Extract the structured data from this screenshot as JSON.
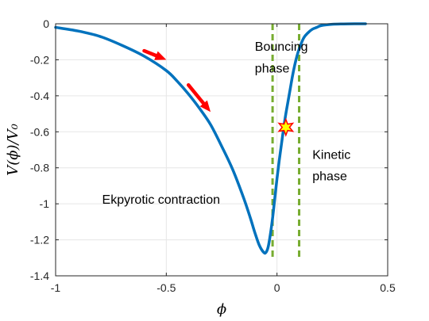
{
  "chart_data": {
    "type": "line",
    "xlabel": "ϕ",
    "ylabel": "V(ϕ)/V₀",
    "xlim": [
      -1,
      0.5
    ],
    "ylim": [
      -1.4,
      0
    ],
    "x_ticks": [
      -1,
      -0.5,
      0,
      0.5
    ],
    "x_tick_labels": [
      "-1",
      "-0.5",
      "0",
      "0.5"
    ],
    "y_ticks": [
      0,
      -0.2,
      -0.4,
      -0.6,
      -0.8,
      -1,
      -1.2,
      -1.4
    ],
    "y_tick_labels": [
      "0",
      "-0.2",
      "-0.4",
      "-0.6",
      "-0.8",
      "-1",
      "-1.2",
      "-1.4"
    ],
    "grid": true,
    "series": [
      {
        "color": "#0072BD",
        "x": [
          -1.0,
          -0.9,
          -0.8,
          -0.7,
          -0.6,
          -0.5,
          -0.45,
          -0.4,
          -0.35,
          -0.3,
          -0.25,
          -0.2,
          -0.15,
          -0.12,
          -0.1,
          -0.08,
          -0.06,
          -0.05,
          -0.04,
          -0.03,
          -0.02,
          -0.01,
          0.0,
          0.01,
          0.02,
          0.03,
          0.04,
          0.05,
          0.06,
          0.07,
          0.08,
          0.09,
          0.1,
          0.12,
          0.14,
          0.16,
          0.18,
          0.2,
          0.25,
          0.3,
          0.35,
          0.4
        ],
        "y": [
          -0.02,
          -0.04,
          -0.07,
          -0.12,
          -0.18,
          -0.26,
          -0.32,
          -0.39,
          -0.47,
          -0.56,
          -0.68,
          -0.81,
          -0.97,
          -1.08,
          -1.16,
          -1.23,
          -1.27,
          -1.27,
          -1.24,
          -1.17,
          -1.08,
          -0.97,
          -0.86,
          -0.76,
          -0.67,
          -0.58,
          -0.5,
          -0.43,
          -0.36,
          -0.29,
          -0.23,
          -0.18,
          -0.14,
          -0.08,
          -0.05,
          -0.03,
          -0.02,
          -0.01,
          -0.003,
          -0.001,
          0.0,
          0.0
        ]
      }
    ],
    "vlines": {
      "x": [
        -0.02,
        0.1
      ],
      "color": "#77AC30",
      "style": "dashed"
    },
    "arrows": [
      {
        "color": "#FF0000",
        "from": [
          -0.6,
          -0.15
        ],
        "to": [
          -0.5,
          -0.2
        ]
      },
      {
        "color": "#FF0000",
        "from": [
          -0.4,
          -0.34
        ],
        "to": [
          -0.3,
          -0.49
        ]
      }
    ],
    "marker": {
      "shape": "star",
      "x": 0.04,
      "y": -0.575,
      "fill": "#FFFF00",
      "edge": "#FF0000"
    },
    "annotations": [
      {
        "lines": [
          "Bouncing",
          "phase"
        ],
        "x": -0.1,
        "y": [
          -0.15,
          -0.27
        ]
      },
      {
        "lines": [
          "Kinetic",
          "phase"
        ],
        "x": 0.16,
        "y": [
          -0.75,
          -0.87
        ]
      },
      {
        "lines": [
          "Ekpyrotic contraction"
        ],
        "x": -0.79,
        "y": [
          -1.0
        ]
      }
    ]
  }
}
